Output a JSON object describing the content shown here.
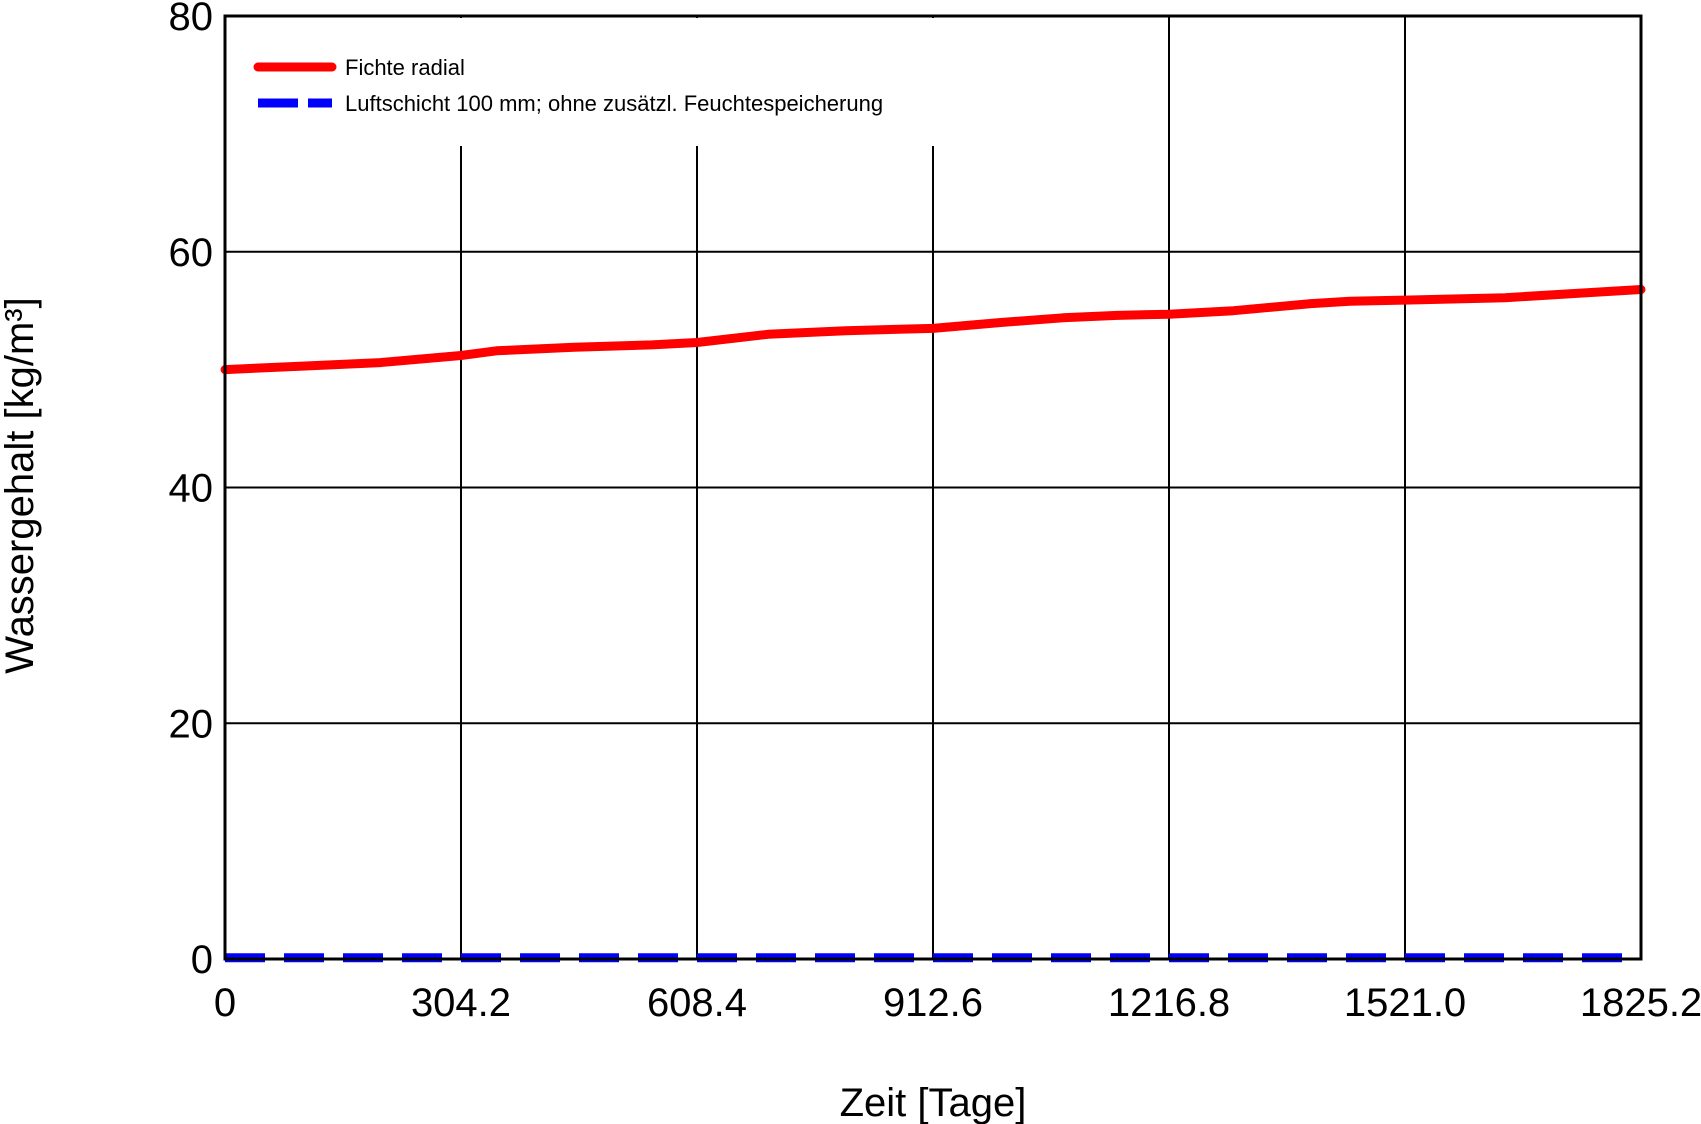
{
  "chart_data": {
    "type": "line",
    "title": "",
    "xlabel": "Zeit [Tage]",
    "ylabel": "Wassergehalt [kg/m³]",
    "xlim": [
      0,
      1825.2
    ],
    "ylim": [
      0,
      80
    ],
    "x_ticks": [
      0,
      304.2,
      608.4,
      912.6,
      1216.8,
      1521.0,
      1825.2
    ],
    "x_tick_labels": [
      "0",
      "304.2",
      "608.4",
      "912.6",
      "1216.8",
      "1521.0",
      "1825.2"
    ],
    "y_ticks": [
      0,
      20,
      40,
      60,
      80
    ],
    "y_tick_labels": [
      "0",
      "20",
      "40",
      "60",
      "80"
    ],
    "grid": true,
    "legend_position": "top-left",
    "series": [
      {
        "name": "Fichte radial",
        "color": "#ff0000",
        "style": "solid",
        "x": [
          0,
          100,
          200,
          304.2,
          350,
          450,
          550,
          608.4,
          700,
          800,
          912.6,
          1000,
          1080,
          1150,
          1216.8,
          1300,
          1400,
          1450,
          1521.0,
          1650,
          1750,
          1825.2
        ],
        "y": [
          50.0,
          50.3,
          50.6,
          51.2,
          51.6,
          51.9,
          52.1,
          52.3,
          53.0,
          53.3,
          53.5,
          54.0,
          54.4,
          54.6,
          54.7,
          55.0,
          55.6,
          55.8,
          55.9,
          56.1,
          56.5,
          56.8
        ]
      },
      {
        "name": "Luftschicht 100 mm; ohne zusätzl. Feuchtespeicherung",
        "color": "#0000ff",
        "style": "dashed",
        "x": [
          0,
          304.2,
          608.4,
          912.6,
          1216.8,
          1521.0,
          1825.2
        ],
        "y": [
          0.1,
          0.1,
          0.1,
          0.1,
          0.1,
          0.1,
          0.1
        ]
      }
    ]
  }
}
